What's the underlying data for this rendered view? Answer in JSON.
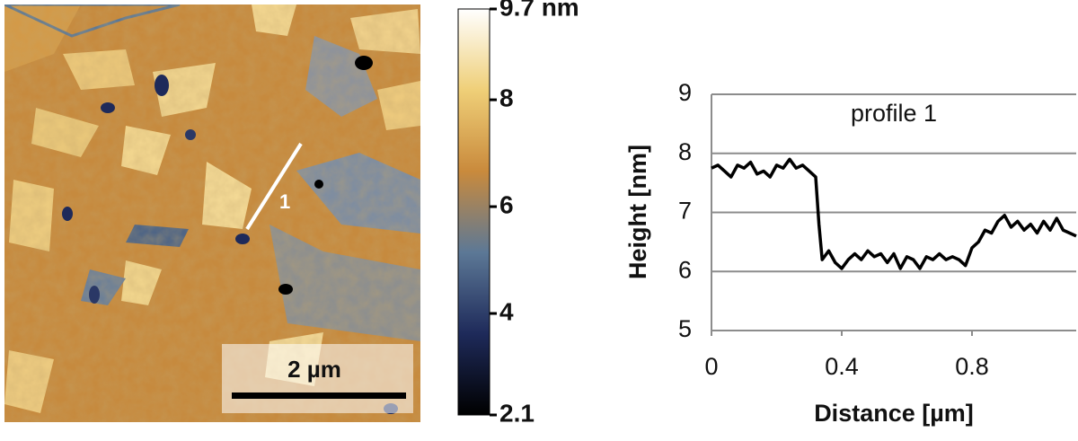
{
  "image": {
    "scale_bar": "2 µm",
    "profile_label": "1",
    "colorbar": {
      "lim": [
        2.1,
        9.7
      ],
      "ticks": [
        {
          "value": 9.7,
          "label": "9.7 nm"
        },
        8,
        6,
        4,
        2.1
      ],
      "colors": [
        "#000000",
        "#1e2a5a",
        "#5c7896",
        "#c98a3c",
        "#efcf78",
        "#ffffff"
      ]
    }
  },
  "chart_data": {
    "type": "line",
    "annotation": "profile 1",
    "x_label": "Distance [µm]",
    "y_label": "Height [nm]",
    "xlim": [
      0,
      1.12
    ],
    "ylim": [
      5,
      9
    ],
    "xticks": [
      0,
      0.4,
      0.8
    ],
    "yticks": [
      5,
      6,
      7,
      8,
      9
    ],
    "grid": true,
    "x": [
      0,
      0.02,
      0.04,
      0.06,
      0.08,
      0.1,
      0.12,
      0.14,
      0.16,
      0.18,
      0.2,
      0.22,
      0.24,
      0.26,
      0.28,
      0.3,
      0.32,
      0.33,
      0.34,
      0.36,
      0.38,
      0.4,
      0.42,
      0.44,
      0.46,
      0.48,
      0.5,
      0.52,
      0.54,
      0.56,
      0.58,
      0.6,
      0.62,
      0.64,
      0.66,
      0.68,
      0.7,
      0.72,
      0.74,
      0.76,
      0.78,
      0.8,
      0.82,
      0.84,
      0.86,
      0.88,
      0.9,
      0.92,
      0.94,
      0.96,
      0.98,
      1.0,
      1.02,
      1.04,
      1.06,
      1.08,
      1.1,
      1.12
    ],
    "series": [
      {
        "name": "profile 1",
        "color": "#000000",
        "values": [
          7.75,
          7.8,
          7.7,
          7.6,
          7.8,
          7.75,
          7.85,
          7.65,
          7.7,
          7.6,
          7.8,
          7.75,
          7.9,
          7.75,
          7.8,
          7.7,
          7.6,
          6.8,
          6.2,
          6.35,
          6.15,
          6.05,
          6.2,
          6.3,
          6.2,
          6.35,
          6.25,
          6.3,
          6.15,
          6.3,
          6.05,
          6.25,
          6.2,
          6.05,
          6.25,
          6.2,
          6.3,
          6.2,
          6.25,
          6.2,
          6.1,
          6.4,
          6.5,
          6.7,
          6.65,
          6.85,
          6.95,
          6.75,
          6.85,
          6.7,
          6.8,
          6.65,
          6.85,
          6.7,
          6.9,
          6.7,
          6.65,
          6.6
        ]
      }
    ]
  }
}
